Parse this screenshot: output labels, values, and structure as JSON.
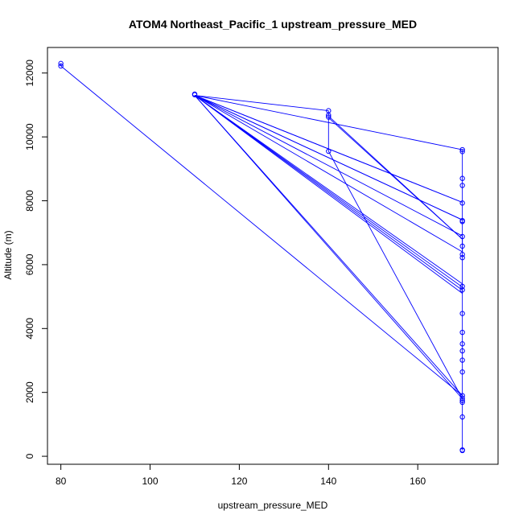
{
  "chart_data": {
    "type": "scatter",
    "title": "ATOM4 Northeast_Pacific_1 upstream_pressure_MED",
    "xlabel": "upstream_pressure_MED",
    "ylabel": "Altitude (m)",
    "xlim": [
      77,
      178
    ],
    "ylim": [
      -250,
      12800
    ],
    "x_ticks": [
      80,
      100,
      120,
      140,
      160
    ],
    "y_ticks": [
      0,
      2000,
      4000,
      6000,
      8000,
      10000,
      12000
    ],
    "grid": false,
    "legend": "none",
    "colors": {
      "series": "#0000ff",
      "axes": "#000000"
    },
    "series": [
      {
        "points": [
          [
            80,
            12300
          ],
          [
            80,
            12220
          ],
          [
            170,
            1900
          ],
          [
            110,
            11340
          ],
          [
            110,
            11320
          ],
          [
            170,
            9600
          ],
          [
            170,
            9540
          ],
          [
            140,
            10820
          ],
          [
            140,
            10680
          ],
          [
            140,
            10620
          ],
          [
            140,
            9550
          ],
          [
            170,
            8700
          ],
          [
            170,
            8480
          ],
          [
            170,
            7930
          ],
          [
            170,
            7380
          ],
          [
            170,
            7350
          ],
          [
            170,
            6880
          ],
          [
            170,
            6580
          ],
          [
            170,
            6320
          ],
          [
            170,
            6220
          ],
          [
            170,
            5320
          ],
          [
            170,
            5210
          ],
          [
            170,
            4470
          ],
          [
            170,
            3880
          ],
          [
            170,
            3520
          ],
          [
            170,
            3300
          ],
          [
            170,
            3010
          ],
          [
            170,
            2640
          ],
          [
            170,
            1820
          ],
          [
            170,
            1750
          ],
          [
            170,
            1690
          ],
          [
            170,
            1230
          ],
          [
            170,
            200
          ],
          [
            170,
            180
          ]
        ],
        "path": [
          [
            80,
            12300
          ],
          [
            80,
            12220
          ],
          [
            170,
            1900
          ],
          [
            110,
            11300
          ],
          [
            170,
            5300
          ],
          [
            170,
            5100
          ],
          [
            110,
            11300
          ],
          [
            170,
            5200
          ],
          [
            170,
            5400
          ],
          [
            110,
            11300
          ],
          [
            170,
            6400
          ],
          [
            170,
            6900
          ],
          [
            110,
            11300
          ],
          [
            170,
            7400
          ],
          [
            170,
            7400
          ],
          [
            110,
            11300
          ],
          [
            170,
            7950
          ],
          [
            170,
            7950
          ],
          [
            110,
            11300
          ],
          [
            140,
            10820
          ],
          [
            140,
            10650
          ],
          [
            170,
            6800
          ],
          [
            140,
            10600
          ],
          [
            140,
            9550
          ],
          [
            170,
            1800
          ],
          [
            110,
            11300
          ],
          [
            170,
            9600
          ],
          [
            170,
            9550
          ],
          [
            170,
            200
          ],
          [
            170,
            180
          ]
        ]
      }
    ]
  }
}
